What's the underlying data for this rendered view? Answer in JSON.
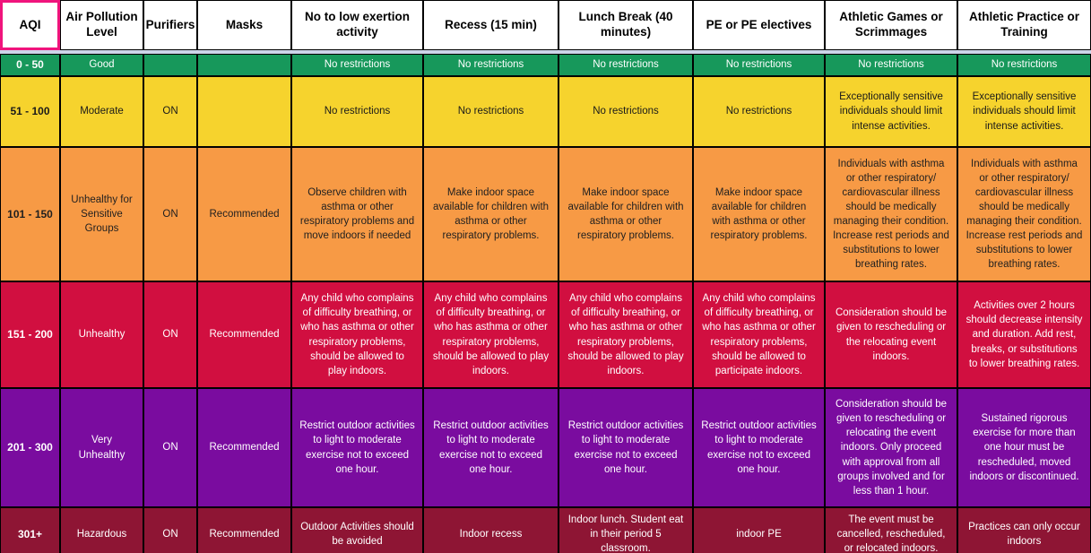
{
  "colors": {
    "selection_border": "#F0147C",
    "grid_line": "#000000",
    "gap_band": "#CDD5E9",
    "header_bg": "#FFFFFF",
    "header_text": "#000000"
  },
  "table": {
    "columns": [
      "AQI",
      "Air Pollution Level",
      "Purifiers",
      "Masks",
      "No to low exertion activity",
      "Recess (15 min)",
      "Lunch Break (40 minutes)",
      "PE or PE electives",
      "Athletic Games or Scrimmages",
      "Athletic Practice or Training"
    ],
    "rows": [
      {
        "id": "good",
        "bg": "#17985B",
        "fg": "#FFFFFF",
        "cells": [
          "0 - 50",
          "Good",
          "",
          "",
          "No restrictions",
          "No restrictions",
          "No restrictions",
          "No restrictions",
          "No restrictions",
          "No restrictions"
        ]
      },
      {
        "id": "moderate",
        "bg": "#F6D32D",
        "fg": "#1A1A1A",
        "cells": [
          "51 - 100",
          "Moderate",
          "ON",
          "",
          "No restrictions",
          "No restrictions",
          "No restrictions",
          "No restrictions",
          "Exceptionally sensitive individuals should limit intense activities.",
          "Exceptionally sensitive individuals should limit intense activities."
        ]
      },
      {
        "id": "unhealthy-sensitive-groups",
        "bg": "#F79A45",
        "fg": "#1F1F1F",
        "cells": [
          "101 - 150",
          "Unhealthy for Sensitive Groups",
          "ON",
          "Recommended",
          "Observe children with asthma or other respiratory problems and move indoors if needed",
          "Make indoor space available for children with asthma or other respiratory problems.",
          "Make indoor space available for children with asthma or other respiratory problems.",
          "Make indoor space available for children with asthma or other respiratory problems.",
          "Individuals with asthma or other respiratory/ cardiovascular illness should be medically managing their condition. Increase rest periods and substitutions to lower breathing rates.",
          "Individuals with asthma or other respiratory/ cardiovascular illness should be medically managing their condition. Increase rest periods and substitutions to lower breathing rates."
        ]
      },
      {
        "id": "unhealthy",
        "bg": "#D10F40",
        "fg": "#FFFFFF",
        "cells": [
          "151 - 200",
          "Unhealthy",
          "ON",
          "Recommended",
          "Any child who complains of difficulty breathing, or who has asthma or other respiratory problems, should be allowed to play indoors.",
          "Any child who complains of difficulty breathing, or who has asthma or other respiratory problems, should be allowed to play indoors.",
          "Any child who complains of difficulty breathing, or who has asthma or other respiratory problems, should be allowed to play indoors.",
          "Any child who complains of difficulty breathing, or who has asthma or other respiratory problems, should be allowed to participate indoors.",
          "Consideration should be given to rescheduling or the relocating event indoors.",
          "Activities over 2 hours should decrease intensity and duration. Add rest, breaks, or substitutions to lower breathing rates."
        ]
      },
      {
        "id": "very-unhealthy",
        "bg": "#7A0C9F",
        "fg": "#FFFFFF",
        "cells": [
          "201 - 300",
          "Very Unhealthy",
          "ON",
          "Recommended",
          "Restrict outdoor activities to light to moderate exercise not to exceed one hour.",
          "Restrict outdoor activities to light to moderate exercise not to exceed one hour.",
          "Restrict outdoor activities to light to moderate exercise not to exceed one hour.",
          "Restrict outdoor activities to light to moderate exercise not to exceed one hour.",
          "Consideration should be given to rescheduling or relocating the event indoors. Only proceed with approval from all groups involved and for less than 1 hour.",
          "Sustained rigorous exercise for more than one hour must be rescheduled, moved indoors or discontinued."
        ]
      },
      {
        "id": "hazardous",
        "bg": "#8E1534",
        "fg": "#FFFFFF",
        "cells": [
          "301+",
          "Hazardous",
          "ON",
          "Recommended",
          "Outdoor Activities should be avoided",
          "Indoor recess",
          "Indoor lunch. Student eat in their period 5 classroom.",
          "indoor PE",
          "The event must be cancelled, rescheduled, or relocated indoors.",
          "Practices can only occur indoors"
        ]
      }
    ]
  }
}
